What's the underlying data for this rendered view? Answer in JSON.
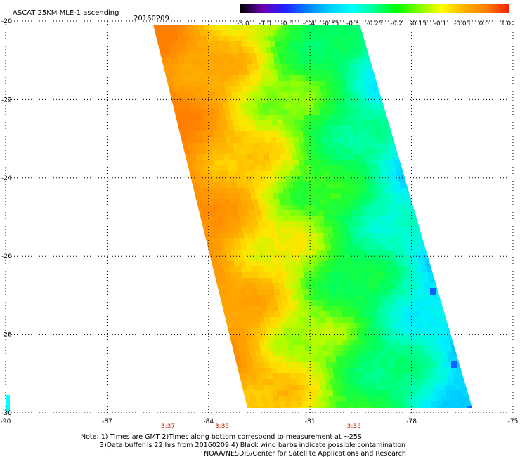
{
  "header": {
    "title": "ASCAT 25KM MLE-1 ascending",
    "date": "20160209"
  },
  "colorbar": {
    "labels": [
      "-3.0",
      "-1.0",
      "-0.5",
      "-0.4",
      "-0.35",
      "-0.3",
      "-0.25",
      "-0.2",
      "-0.15",
      "-0.1",
      "-0.05",
      "0.0",
      "1.0"
    ],
    "colors": [
      "#000000",
      "#6a00b0",
      "#2020ff",
      "#0080ff",
      "#00d0ff",
      "#00ffff",
      "#00ff90",
      "#00ff00",
      "#80ff00",
      "#ffff00",
      "#ffb000",
      "#ff8000",
      "#ff2000"
    ]
  },
  "map": {
    "lon_labels": [
      "-90",
      "-87",
      "-84",
      "-81",
      "-78",
      "-75"
    ],
    "lat_labels": [
      "-20",
      "-22",
      "-24",
      "-26",
      "-28",
      "-30"
    ],
    "lon_range": [
      -90,
      -75
    ],
    "lat_range": [
      -30,
      -20
    ],
    "grid": "dotted",
    "times": [
      {
        "label": "3:37",
        "lon": -85.2
      },
      {
        "label": "3:35",
        "lon": -83.6
      },
      {
        "label": "3:35",
        "lon": -79.7
      }
    ]
  },
  "notes": [
    "Note: 1) Times are GMT 2)Times along bottom correspond to measurement at ~25S",
    "3)Data buffer is 22 hrs from 20160209 4) Black wind barbs indicate possible contamination",
    "NOAA/NESDIS/Center for Satellite Applications and Research"
  ]
}
